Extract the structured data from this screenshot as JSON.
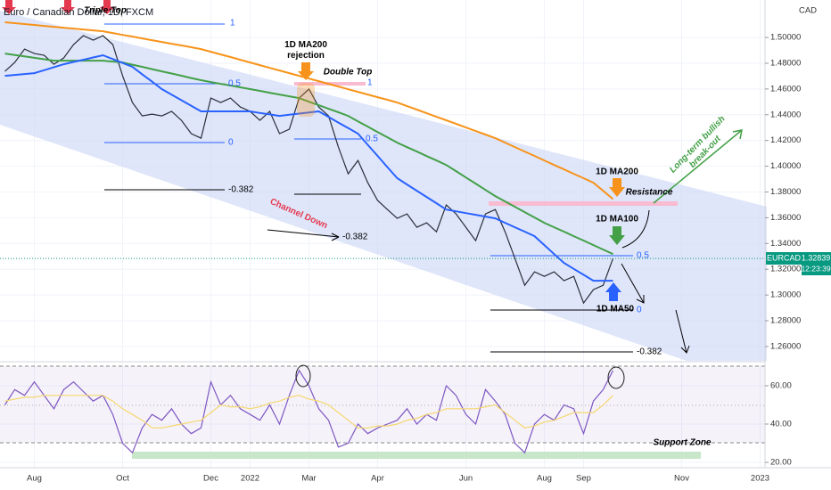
{
  "chart_data": [
    {
      "type": "line",
      "title": "Euro / Canadian Dollar, 1D, FXCM",
      "y_label": "CAD",
      "symbol": "EURCAD",
      "last_price": 1.32839,
      "countdown": "12:23:39",
      "categories": [
        null,
        null,
        null,
        "Aug",
        null,
        null,
        null,
        null,
        null,
        null,
        null,
        null,
        "Oct",
        null,
        null,
        null,
        null,
        null,
        null,
        null,
        null,
        "Dec",
        null,
        null,
        null,
        "2022",
        null,
        null,
        null,
        null,
        null,
        "Mar",
        null,
        null,
        null,
        null,
        null,
        null,
        "Apr",
        null,
        null,
        null,
        null,
        null,
        null,
        null,
        null,
        "Jun",
        null,
        null,
        null,
        null,
        null,
        null,
        null,
        "Aug",
        null,
        null,
        null,
        "Sep",
        null,
        null,
        null,
        null,
        null,
        null,
        null,
        null,
        null,
        "Nov",
        null,
        null,
        null,
        null,
        null,
        null,
        null,
        "2023"
      ],
      "series": [
        {
          "color": "#2a2e39",
          "values": [
            1.4737,
            1.4806,
            1.491,
            1.4875,
            1.4862,
            1.4792,
            1.4841,
            1.4945,
            1.5014,
            1.4979,
            1.5014,
            1.4945,
            1.4702,
            1.4495,
            1.4391,
            1.4405,
            1.4391,
            1.4426,
            1.4356,
            1.4253,
            1.4218,
            1.4529,
            1.4495,
            1.4529,
            1.446,
            1.4426,
            1.4356,
            1.4426,
            1.4253,
            1.4287,
            1.4529,
            1.4599,
            1.446,
            1.4391,
            1.4149,
            1.3941,
            1.4045,
            1.3872,
            1.3734,
            1.3664,
            1.3595,
            1.363,
            1.3526,
            1.3561,
            1.3491,
            1.3699,
            1.363,
            1.3526,
            1.3422,
            1.363,
            1.3664,
            1.3491,
            1.3284,
            1.3076,
            1.318,
            1.3145,
            1.318,
            1.3111,
            1.3145,
            1.2938,
            1.3042,
            1.3076,
            1.3284,
            null,
            null,
            null,
            null,
            null,
            null,
            null,
            null,
            null,
            null,
            null,
            null,
            null,
            null,
            null
          ]
        },
        {
          "color": "#f7931a",
          "values": [
            1.5118,
            1.5111,
            1.5104,
            1.5097,
            1.509,
            1.5083,
            1.5076,
            1.5069,
            1.5062,
            1.5055,
            1.5048,
            1.5034,
            1.502,
            1.5007,
            1.4993,
            1.4979,
            1.4965,
            1.4951,
            1.4938,
            1.4924,
            1.491,
            1.4889,
            1.4868,
            1.4848,
            1.4827,
            1.4806,
            1.4785,
            1.4764,
            1.4744,
            1.4723,
            1.4702,
            1.4681,
            1.4661,
            1.464,
            1.4619,
            1.4598,
            1.4578,
            1.4557,
            1.4536,
            1.4516,
            1.4495,
            1.4467,
            1.444,
            1.4412,
            1.4384,
            1.4357,
            1.4329,
            1.4301,
            1.4273,
            1.4246,
            1.4218,
            1.4183,
            1.4149,
            1.4114,
            1.408,
            1.4045,
            1.401,
            1.3976,
            1.3941,
            1.3907,
            1.3872,
            1.3809,
            1.3745,
            null,
            null,
            null,
            null,
            null,
            null,
            null,
            null,
            null,
            null,
            null,
            null,
            null,
            null,
            null
          ]
        },
        {
          "color": "#43a047",
          "values": [
            1.4875,
            1.4864,
            1.4853,
            1.4842,
            1.4831,
            1.482,
            1.482,
            1.482,
            1.482,
            1.482,
            1.482,
            1.4813,
            1.4806,
            1.4789,
            1.4772,
            1.4754,
            1.4737,
            1.472,
            1.4703,
            1.4685,
            1.4668,
            1.4654,
            1.464,
            1.4627,
            1.4613,
            1.4599,
            1.4585,
            1.4571,
            1.4557,
            1.4543,
            1.4529,
            1.4501,
            1.4474,
            1.4446,
            1.4419,
            1.4391,
            1.4349,
            1.4308,
            1.4266,
            1.4225,
            1.4183,
            1.4148,
            1.4114,
            1.4079,
            1.4045,
            1.401,
            1.3962,
            1.3913,
            1.3865,
            1.3816,
            1.3768,
            1.3727,
            1.3685,
            1.3644,
            1.3602,
            1.3561,
            1.3526,
            1.3492,
            1.3457,
            1.3423,
            1.3388,
            1.3353,
            1.3318,
            null,
            null,
            null,
            null,
            null,
            null,
            null,
            null,
            null,
            null,
            null,
            null,
            null,
            null,
            null
          ]
        },
        {
          "color": "#2962ff",
          "values": [
            1.4702,
            1.4709,
            1.4716,
            1.4723,
            1.4746,
            1.4769,
            1.4792,
            1.481,
            1.4827,
            1.4845,
            1.4862,
            1.4832,
            1.4802,
            1.4772,
            1.4714,
            1.4657,
            1.4599,
            1.4556,
            1.4513,
            1.4469,
            1.4426,
            1.4426,
            1.4426,
            1.4426,
            1.4426,
            1.4426,
            1.4414,
            1.4403,
            1.4391,
            1.44,
            1.4409,
            1.4417,
            1.4426,
            1.4383,
            1.4339,
            1.4296,
            1.4253,
            1.4166,
            1.408,
            1.3993,
            1.3907,
            1.3858,
            1.381,
            1.3761,
            1.3713,
            1.3664,
            1.365,
            1.3636,
            1.3623,
            1.3609,
            1.3595,
            1.3561,
            1.3526,
            1.3492,
            1.3457,
            1.3388,
            1.3318,
            1.3249,
            1.3203,
            1.3157,
            1.3111,
            1.3111,
            1.3111,
            null,
            null,
            null,
            null,
            null,
            null,
            null,
            null,
            null,
            null,
            null,
            null,
            null,
            null,
            null
          ]
        }
      ],
      "ylim": [
        1.2489,
        1.5291
      ],
      "yticks": [
        {
          "value": 1.26,
          "label": "1.26000"
        },
        {
          "value": 1.28,
          "label": "1.28000"
        },
        {
          "value": 1.3,
          "label": "1.30000"
        },
        {
          "value": 1.32,
          "label": "1.32000"
        },
        {
          "value": 1.34,
          "label": "1.34000"
        },
        {
          "value": 1.36,
          "label": "1.36000"
        },
        {
          "value": 1.38,
          "label": "1.38000"
        },
        {
          "value": 1.4,
          "label": "1.40000"
        },
        {
          "value": 1.42,
          "label": "1.42000"
        },
        {
          "value": 1.44,
          "label": "1.44000"
        },
        {
          "value": 1.46,
          "label": "1.46000"
        },
        {
          "value": 1.48,
          "label": "1.48000"
        },
        {
          "value": 1.5,
          "label": "1.50000"
        }
      ],
      "grid": true,
      "annotations": [
        {
          "text": "Triple Top"
        },
        {
          "lines": [
            "1D MA200",
            "rejection"
          ]
        },
        {
          "text": "Double Top"
        },
        {
          "text": "Channel Down"
        },
        {
          "lines": [
            "Long-term bullish",
            "break-out"
          ]
        },
        {
          "text": "1D MA200"
        },
        {
          "text": "Resistance"
        },
        {
          "text": "1D MA100"
        },
        {
          "text": "1D MA50"
        },
        {
          "text": "Support Zone"
        },
        {
          "text": "1"
        },
        {
          "text": "0.5"
        },
        {
          "text": "0"
        },
        {
          "text": "-0.382"
        },
        {
          "text": "1"
        },
        {
          "text": "0.5"
        },
        {
          "text": "-0.382"
        },
        {
          "text": "0.5"
        },
        {
          "text": "0"
        },
        {
          "text": "-0.382"
        }
      ]
    },
    {
      "type": "line",
      "series": [
        {
          "color": "#7e57c2",
          "values": [
            50,
            58,
            55,
            62,
            55,
            48,
            58,
            62,
            57,
            52,
            55,
            45,
            30,
            25,
            38,
            45,
            42,
            48,
            40,
            35,
            38,
            62,
            50,
            55,
            48,
            45,
            42,
            50,
            40,
            55,
            68,
            60,
            48,
            42,
            28,
            30,
            40,
            35,
            38,
            40,
            42,
            48,
            40,
            45,
            42,
            60,
            55,
            45,
            40,
            58,
            52,
            45,
            30,
            25,
            40,
            45,
            42,
            50,
            48,
            35,
            52,
            58,
            68,
            null,
            null,
            null,
            null,
            null,
            null,
            null,
            null,
            null,
            null,
            null,
            null,
            null,
            null,
            null
          ]
        },
        {
          "color": "#f5d76e",
          "values": [
            52,
            53,
            54,
            54,
            55,
            55,
            55,
            55,
            55,
            55,
            55,
            52,
            48,
            45,
            42,
            38,
            38,
            39,
            40,
            41,
            42,
            46,
            50,
            49,
            49,
            48,
            49,
            51,
            52,
            54,
            55,
            53,
            52,
            50,
            46,
            42,
            38,
            38,
            39,
            39,
            40,
            42,
            43,
            45,
            46,
            48,
            48,
            48,
            48,
            49,
            50,
            46,
            42,
            38,
            39,
            41,
            42,
            44,
            46,
            46,
            46,
            50,
            55,
            null,
            null,
            null,
            null,
            null,
            null,
            null,
            null,
            null,
            null,
            null,
            null,
            null,
            null,
            null
          ]
        }
      ],
      "ylim": [
        18.6,
        70.7
      ],
      "yticks": [
        {
          "value": 20,
          "label": "20.00"
        },
        {
          "value": 40,
          "label": "40.00"
        },
        {
          "value": 60,
          "label": "60.00"
        }
      ]
    }
  ]
}
